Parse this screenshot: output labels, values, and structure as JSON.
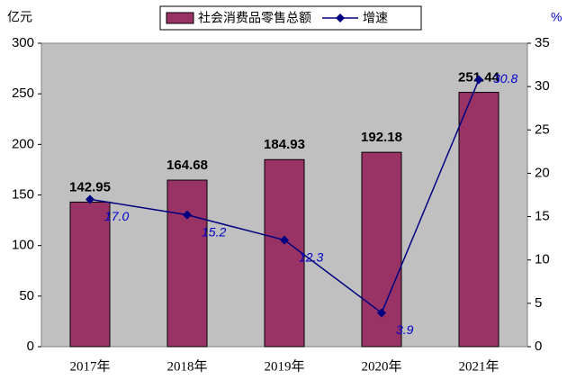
{
  "chart_data": {
    "type": "bar",
    "y_label": "亿元",
    "y2_label": "%",
    "categories": [
      "2017年",
      "2018年",
      "2019年",
      "2020年",
      "2021年"
    ],
    "series": [
      {
        "name": "社会消费品零售总额",
        "color": "#993366",
        "values": [
          142.95,
          164.68,
          184.93,
          192.18,
          251.44
        ]
      },
      {
        "name": "增速",
        "color": "#000080",
        "type": "line",
        "axis": "y2",
        "values": [
          17.0,
          15.2,
          12.3,
          3.9,
          30.8
        ],
        "value_labels": [
          "17.0",
          "15.2",
          "12.3",
          "3.9",
          "30.8"
        ]
      }
    ],
    "ylim": [
      0,
      300
    ],
    "yticks": [
      0,
      50,
      100,
      150,
      200,
      250,
      300
    ],
    "y2lim": [
      0,
      35
    ],
    "y2ticks": [
      0,
      5,
      10,
      15,
      20,
      25,
      30,
      35
    ]
  }
}
